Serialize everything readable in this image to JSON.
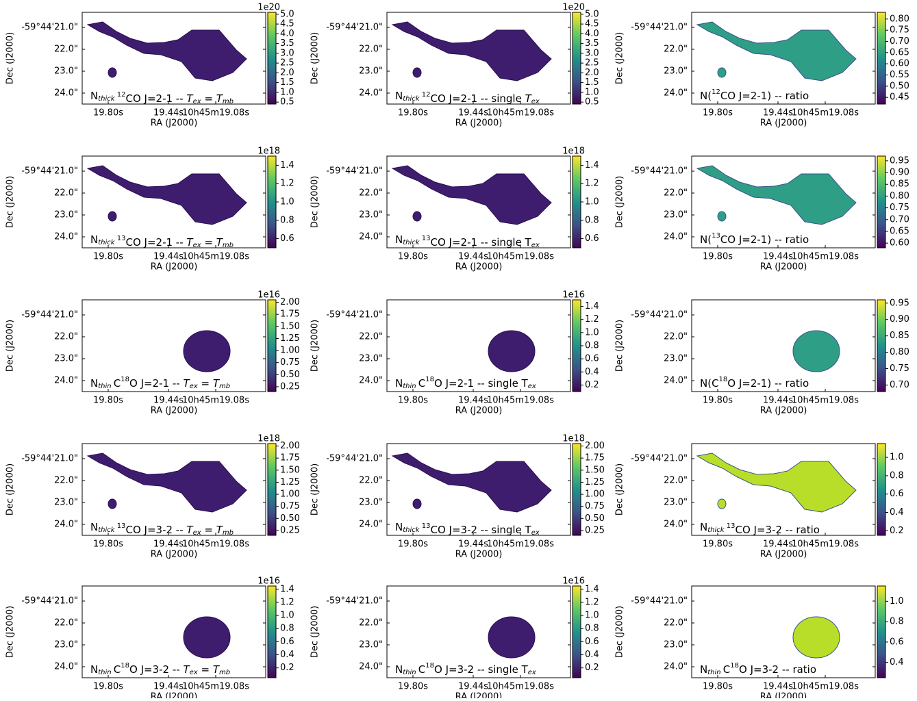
{
  "axes": {
    "xlabel": "RA (J2000)",
    "ylabel": "Dec (J2000)",
    "xticks": [
      "19.80s",
      "19.44s",
      "10h45m19.08s"
    ],
    "yticks": [
      "-59°44'21.0\"",
      "22.0\"",
      "23.0\"",
      "24.0\""
    ]
  },
  "chart_data": [
    {
      "type": "image",
      "title": [
        {
          "t": "N"
        },
        {
          "t": "thick ",
          "s": "sub-i"
        },
        {
          "t": "12",
          "s": "sup"
        },
        {
          "t": "CO J=2-1 -- "
        },
        {
          "t": "T",
          "s": "i"
        },
        {
          "t": "ex",
          "s": "sub-i"
        },
        {
          "t": " = "
        },
        {
          "t": "T",
          "s": "i"
        },
        {
          "t": "mb",
          "s": "sub-i"
        }
      ],
      "offset_label": "1e20",
      "clim": [
        0.4,
        5.1
      ],
      "cticks": [
        0.5,
        {
          "value": 1,
          "label": "1.0"
        },
        1.5,
        {
          "value": 2,
          "label": "2.0"
        },
        2.5,
        {
          "value": 3,
          "label": "3.0"
        },
        3.5,
        {
          "value": 4,
          "label": "4.0"
        },
        4.5,
        {
          "value": 5,
          "label": "5.0"
        }
      ]
    },
    {
      "type": "image",
      "title": [
        {
          "t": "N"
        },
        {
          "t": "thick ",
          "s": "sub-i"
        },
        {
          "t": "12",
          "s": "sup"
        },
        {
          "t": "CO J=2-1 -- single "
        },
        {
          "t": "T",
          "s": "i"
        },
        {
          "t": "ex",
          "s": "sub-i"
        }
      ],
      "offset_label": "1e20",
      "clim": [
        0.4,
        5.1
      ],
      "cticks": [
        0.5,
        {
          "value": 1,
          "label": "1.0"
        },
        1.5,
        {
          "value": 2,
          "label": "2.0"
        },
        2.5,
        {
          "value": 3,
          "label": "3.0"
        },
        3.5,
        {
          "value": 4,
          "label": "4.0"
        },
        4.5,
        {
          "value": 5,
          "label": "5.0"
        }
      ]
    },
    {
      "type": "image",
      "title": [
        {
          "t": "N("
        },
        {
          "t": "12",
          "s": "sup"
        },
        {
          "t": "CO J=2-1) -- ratio"
        }
      ],
      "clim": [
        0.42,
        0.83
      ],
      "cticks": [
        0.45,
        {
          "value": 0.5,
          "label": "0.50"
        },
        0.55,
        {
          "value": 0.6,
          "label": "0.60"
        },
        0.65,
        {
          "value": 0.7,
          "label": "0.70"
        },
        0.75,
        {
          "value": 0.8,
          "label": "0.80"
        }
      ]
    },
    {
      "type": "image",
      "title": [
        {
          "t": "N"
        },
        {
          "t": "thick ",
          "s": "sub-i"
        },
        {
          "t": "13",
          "s": "sup"
        },
        {
          "t": "CO J=2-1 -- "
        },
        {
          "t": "T",
          "s": "i"
        },
        {
          "t": "ex",
          "s": "sub-i"
        },
        {
          "t": " = "
        },
        {
          "t": "T",
          "s": "i"
        },
        {
          "t": "mb",
          "s": "sub-i"
        }
      ],
      "offset_label": "1e18",
      "clim": [
        0.5,
        1.5
      ],
      "cticks": [
        0.6,
        0.8,
        {
          "value": 1,
          "label": "1.0"
        },
        1.2,
        1.4
      ]
    },
    {
      "type": "image",
      "title": [
        {
          "t": "N"
        },
        {
          "t": "thick ",
          "s": "sub-i"
        },
        {
          "t": "13",
          "s": "sup"
        },
        {
          "t": "CO J=2-1 -- single T"
        },
        {
          "t": "ex",
          "s": "sub-i"
        }
      ],
      "offset_label": "1e18",
      "clim": [
        0.5,
        1.5
      ],
      "cticks": [
        0.6,
        0.8,
        {
          "value": 1,
          "label": "1.0"
        },
        1.2,
        1.4
      ]
    },
    {
      "type": "image",
      "title": [
        {
          "t": "N("
        },
        {
          "t": "13",
          "s": "sup"
        },
        {
          "t": "CO J=2-1) -- ratio"
        }
      ],
      "clim": [
        0.58,
        0.97
      ],
      "cticks": [
        {
          "value": 0.6,
          "label": "0.60"
        },
        0.65,
        {
          "value": 0.7,
          "label": "0.70"
        },
        0.75,
        {
          "value": 0.8,
          "label": "0.80"
        },
        0.85,
        {
          "value": 0.9,
          "label": "0.90"
        },
        0.95
      ]
    },
    {
      "type": "image",
      "title": [
        {
          "t": "N"
        },
        {
          "t": "thin ",
          "s": "sub-i"
        },
        {
          "t": "C"
        },
        {
          "t": "18",
          "s": "sup"
        },
        {
          "t": "O J=2-1 -- "
        },
        {
          "t": "T",
          "s": "i"
        },
        {
          "t": "ex",
          "s": "sub-i"
        },
        {
          "t": " = "
        },
        {
          "t": "T",
          "s": "i"
        },
        {
          "t": "mb",
          "s": "sub-i"
        }
      ],
      "offset_label": "1e16",
      "clim": [
        0.15,
        2.05
      ],
      "cticks": [
        0.25,
        {
          "value": 0.5,
          "label": "0.50"
        },
        0.75,
        {
          "value": 1,
          "label": "1.00"
        },
        1.25,
        {
          "value": 1.5,
          "label": "1.50"
        },
        1.75,
        {
          "value": 2,
          "label": "2.00"
        }
      ]
    },
    {
      "type": "image",
      "title": [
        {
          "t": "N"
        },
        {
          "t": "thin ",
          "s": "sub-i"
        },
        {
          "t": "C"
        },
        {
          "t": "18",
          "s": "sup"
        },
        {
          "t": "O J=2-1 -- single T"
        },
        {
          "t": "ex",
          "s": "sub-i"
        }
      ],
      "offset_label": "1e16",
      "clim": [
        0.1,
        1.5
      ],
      "cticks": [
        0.2,
        0.4,
        0.6,
        0.8,
        {
          "value": 1,
          "label": "1.0"
        },
        1.2,
        1.4
      ]
    },
    {
      "type": "image",
      "title": [
        {
          "t": "N(C"
        },
        {
          "t": "18",
          "s": "sup"
        },
        {
          "t": "O J=2-1) -- ratio"
        }
      ],
      "clim": [
        0.68,
        0.96
      ],
      "cticks": [
        {
          "value": 0.7,
          "label": "0.70"
        },
        0.75,
        {
          "value": 0.8,
          "label": "0.80"
        },
        0.85,
        {
          "value": 0.9,
          "label": "0.90"
        },
        0.95
      ]
    },
    {
      "type": "image",
      "title": [
        {
          "t": "N"
        },
        {
          "t": "thick ",
          "s": "sub-i"
        },
        {
          "t": "13",
          "s": "sup"
        },
        {
          "t": "CO J=3-2 -- "
        },
        {
          "t": "T",
          "s": "i"
        },
        {
          "t": "ex",
          "s": "sub-i"
        },
        {
          "t": " = "
        },
        {
          "t": "T",
          "s": "i"
        },
        {
          "t": "mb",
          "s": "sub-i"
        }
      ],
      "offset_label": "1e18",
      "clim": [
        0.15,
        2.05
      ],
      "cticks": [
        0.25,
        {
          "value": 0.5,
          "label": "0.50"
        },
        0.75,
        {
          "value": 1,
          "label": "1.00"
        },
        1.25,
        {
          "value": 1.5,
          "label": "1.50"
        },
        1.75,
        {
          "value": 2,
          "label": "2.00"
        }
      ]
    },
    {
      "type": "image",
      "title": [
        {
          "t": "N"
        },
        {
          "t": "thick ",
          "s": "sub-i"
        },
        {
          "t": "13",
          "s": "sup"
        },
        {
          "t": "CO J=3-2 -- single T"
        },
        {
          "t": "ex",
          "s": "sub-i"
        }
      ],
      "offset_label": "1e18",
      "clim": [
        0.15,
        2.05
      ],
      "cticks": [
        0.25,
        {
          "value": 0.5,
          "label": "0.50"
        },
        0.75,
        {
          "value": 1,
          "label": "1.00"
        },
        1.25,
        {
          "value": 1.5,
          "label": "1.50"
        },
        1.75,
        {
          "value": 2,
          "label": "2.00"
        }
      ]
    },
    {
      "type": "image",
      "title": [
        {
          "t": "N"
        },
        {
          "t": "thick ",
          "s": "sub-i"
        },
        {
          "t": "13",
          "s": "sup"
        },
        {
          "t": "CO J=3-2 -- ratio"
        }
      ],
      "clim": [
        0.15,
        1.15
      ],
      "cticks": [
        0.2,
        0.4,
        0.6,
        0.8,
        {
          "value": 1,
          "label": "1.0"
        }
      ]
    },
    {
      "type": "image",
      "title": [
        {
          "t": "N"
        },
        {
          "t": "thin ",
          "s": "sub-i"
        },
        {
          "t": "C"
        },
        {
          "t": "18",
          "s": "sup"
        },
        {
          "t": "O J=3-2 -- "
        },
        {
          "t": "T",
          "s": "i"
        },
        {
          "t": "ex",
          "s": "sub-i"
        },
        {
          "t": " = "
        },
        {
          "t": "T",
          "s": "i"
        },
        {
          "t": "mb",
          "s": "sub-i"
        }
      ],
      "offset_label": "1e16",
      "clim": [
        0.05,
        1.45
      ],
      "cticks": [
        0.2,
        0.4,
        0.6,
        0.8,
        {
          "value": 1,
          "label": "1.0"
        },
        1.2,
        1.4
      ]
    },
    {
      "type": "image",
      "title": [
        {
          "t": "N"
        },
        {
          "t": "thin ",
          "s": "sub-i"
        },
        {
          "t": "C"
        },
        {
          "t": "18",
          "s": "sup"
        },
        {
          "t": "O J=3-2 -- single T"
        },
        {
          "t": "ex",
          "s": "sub-i"
        }
      ],
      "offset_label": "1e16",
      "clim": [
        0.05,
        1.45
      ],
      "cticks": [
        0.2,
        0.4,
        0.6,
        0.8,
        {
          "value": 1,
          "label": "1.0"
        },
        1.2,
        1.4
      ]
    },
    {
      "type": "image",
      "title": [
        {
          "t": "N"
        },
        {
          "t": "thin ",
          "s": "sub-i"
        },
        {
          "t": "C"
        },
        {
          "t": "18",
          "s": "sup"
        },
        {
          "t": "O J=3-2 -- ratio"
        }
      ],
      "clim": [
        0.25,
        1.15
      ],
      "cticks": [
        0.4,
        0.6,
        0.8,
        {
          "value": 1,
          "label": "1.0"
        }
      ]
    }
  ]
}
